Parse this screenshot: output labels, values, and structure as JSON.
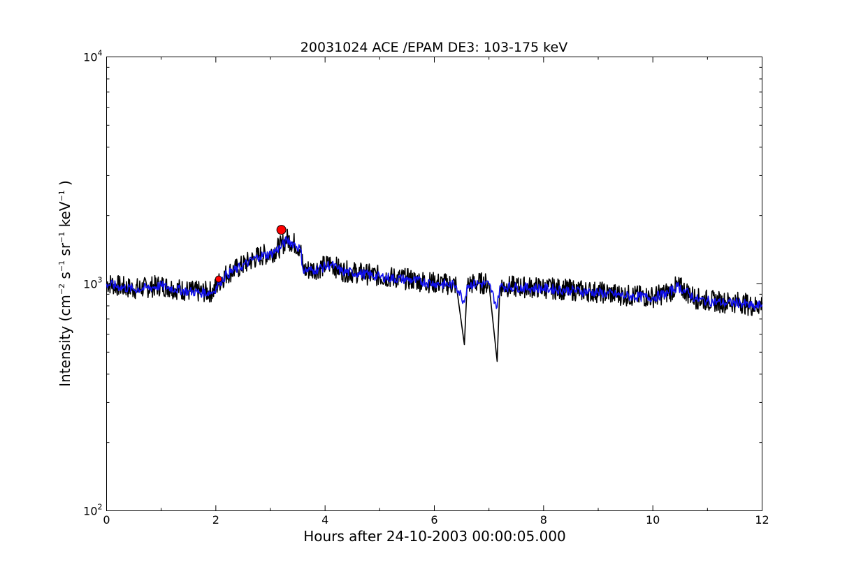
{
  "chart_data": {
    "type": "line",
    "title": "20031024 ACE /EPAM DE3: 103-175 keV",
    "xlabel": "Hours after 24-10-2003 00:00:05.000",
    "ylabel": {
      "prefix": "Intensity (cm",
      "e1": "−2",
      "u2": " s",
      "e2": "−1",
      "u3": " sr",
      "e3": "−1",
      "u4": " keV",
      "e4": "−1",
      "suffix": " )"
    },
    "xlim": [
      0,
      12
    ],
    "ylim": [
      100,
      10000
    ],
    "yscale": "log",
    "grid": false,
    "x_ticks": [
      "0",
      "2",
      "4",
      "6",
      "8",
      "10",
      "12"
    ],
    "y_ticks": [
      {
        "value": 100,
        "base": "10",
        "exp": "2"
      },
      {
        "value": 1000,
        "base": "10",
        "exp": "3"
      },
      {
        "value": 10000,
        "base": "10",
        "exp": "4"
      }
    ],
    "series": [
      {
        "role": "raw",
        "color": "#000000",
        "points": [
          [
            0,
            1010
          ],
          [
            0.25,
            975
          ],
          [
            0.5,
            950
          ],
          [
            0.75,
            965
          ],
          [
            1.0,
            985
          ],
          [
            1.25,
            955
          ],
          [
            1.5,
            930
          ],
          [
            1.75,
            920
          ],
          [
            1.95,
            925
          ],
          [
            2.05,
            1010
          ],
          [
            2.2,
            1110
          ],
          [
            2.4,
            1170
          ],
          [
            2.6,
            1250
          ],
          [
            2.8,
            1330
          ],
          [
            3.0,
            1360
          ],
          [
            3.2,
            1470
          ],
          [
            3.3,
            1580
          ],
          [
            3.45,
            1500
          ],
          [
            3.55,
            1430
          ],
          [
            3.6,
            1150
          ],
          [
            3.8,
            1160
          ],
          [
            4.0,
            1200
          ],
          [
            4.1,
            1230
          ],
          [
            4.3,
            1140
          ],
          [
            4.6,
            1120
          ],
          [
            5.0,
            1080
          ],
          [
            5.5,
            1050
          ],
          [
            6.0,
            1010
          ],
          [
            6.4,
            990
          ],
          [
            6.55,
            540
          ],
          [
            6.6,
            990
          ],
          [
            6.8,
            1010
          ],
          [
            7.0,
            1000
          ],
          [
            7.15,
            455
          ],
          [
            7.2,
            980
          ],
          [
            7.5,
            970
          ],
          [
            8.0,
            960
          ],
          [
            8.5,
            940
          ],
          [
            9.0,
            920
          ],
          [
            9.5,
            890
          ],
          [
            10.0,
            875
          ],
          [
            10.3,
            920
          ],
          [
            10.45,
            980
          ],
          [
            10.6,
            930
          ],
          [
            10.8,
            860
          ],
          [
            11.0,
            845
          ],
          [
            11.3,
            830
          ],
          [
            11.6,
            830
          ],
          [
            11.85,
            795
          ],
          [
            12.0,
            815
          ]
        ]
      },
      {
        "role": "smoothed",
        "color": "#1010ee",
        "points": [
          [
            0,
            1000
          ],
          [
            0.25,
            970
          ],
          [
            0.5,
            945
          ],
          [
            0.75,
            960
          ],
          [
            1.0,
            980
          ],
          [
            1.25,
            950
          ],
          [
            1.5,
            925
          ],
          [
            1.75,
            915
          ],
          [
            1.95,
            920
          ],
          [
            2.05,
            1000
          ],
          [
            2.2,
            1100
          ],
          [
            2.4,
            1165
          ],
          [
            2.6,
            1245
          ],
          [
            2.8,
            1325
          ],
          [
            3.0,
            1350
          ],
          [
            3.2,
            1460
          ],
          [
            3.3,
            1560
          ],
          [
            3.45,
            1490
          ],
          [
            3.55,
            1420
          ],
          [
            3.6,
            1145
          ],
          [
            3.8,
            1150
          ],
          [
            4.0,
            1190
          ],
          [
            4.1,
            1220
          ],
          [
            4.3,
            1135
          ],
          [
            4.6,
            1115
          ],
          [
            5.0,
            1075
          ],
          [
            5.5,
            1045
          ],
          [
            6.0,
            1005
          ],
          [
            6.4,
            985
          ],
          [
            6.55,
            830
          ],
          [
            6.6,
            985
          ],
          [
            6.8,
            1005
          ],
          [
            7.0,
            995
          ],
          [
            7.15,
            790
          ],
          [
            7.2,
            975
          ],
          [
            7.5,
            965
          ],
          [
            8.0,
            955
          ],
          [
            8.5,
            935
          ],
          [
            9.0,
            915
          ],
          [
            9.5,
            885
          ],
          [
            10.0,
            870
          ],
          [
            10.3,
            915
          ],
          [
            10.45,
            975
          ],
          [
            10.6,
            925
          ],
          [
            10.8,
            855
          ],
          [
            11.0,
            840
          ],
          [
            11.3,
            825
          ],
          [
            11.6,
            825
          ],
          [
            11.85,
            790
          ],
          [
            12.0,
            810
          ]
        ]
      }
    ],
    "markers": [
      {
        "x": 2.05,
        "y": 1050,
        "color": "#ff0000",
        "size": "small"
      },
      {
        "x": 3.2,
        "y": 1730,
        "color": "#ff0000",
        "size": "large"
      }
    ]
  }
}
